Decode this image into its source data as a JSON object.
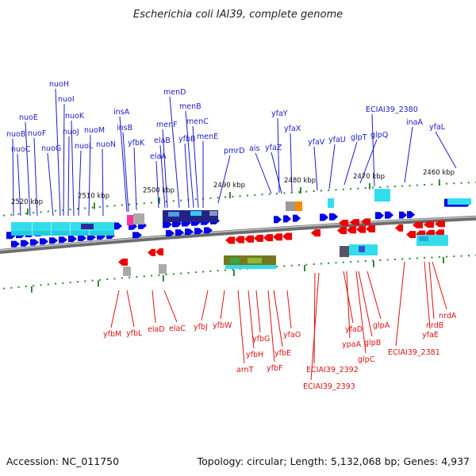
{
  "title": "Escherichia coli IAI39, complete genome",
  "footer": {
    "accession": "Accession: NC_011750",
    "stats": "Topology: circular; Length: 5,132,068 bp; Genes: 4,937"
  },
  "colors": {
    "forward_gene": "#0000ee",
    "reverse_gene": "#ee0000",
    "forward_label": "#1a1acc",
    "reverse_label": "#dd1111",
    "backbone": "#808080",
    "tick": "#2a8a2a"
  },
  "kbp_labels": [
    "2520 kbp",
    "2510 kbp",
    "2500 kbp",
    "2490 kbp",
    "2480 kbp",
    "2470 kbp",
    "2460 kbp"
  ],
  "top_genes": [
    "nuoB",
    "nuoC",
    "nuoE",
    "nuoF",
    "nuoG",
    "nuoH",
    "nuoI",
    "nuoJ",
    "nuoK",
    "nuoL",
    "nuoM",
    "nuoN",
    "insA",
    "insB",
    "yfbK",
    "elaA",
    "elaB",
    "menF",
    "menD",
    "yfbB",
    "menB",
    "menC",
    "menE",
    "pmrD",
    "ais",
    "yfaZ",
    "yfaY",
    "yfaX",
    "yfaV",
    "yfaU",
    "glpT",
    "glpQ",
    "ECIAI39_2380",
    "inaA",
    "yfaL"
  ],
  "bottom_genes": [
    "yfbM",
    "yfbL",
    "elaD",
    "elaC",
    "yfbJ",
    "yfbW",
    "arnT",
    "yfbH",
    "yfbG",
    "yfbF",
    "yfbE",
    "yfaO",
    "ECIAI39_2392",
    "ECIAI39_2393",
    "yfaD",
    "ypaA",
    "glpC",
    "glpB",
    "glpA",
    "ECIAI39_2381",
    "yfaE",
    "nrdB",
    "nrdA"
  ]
}
